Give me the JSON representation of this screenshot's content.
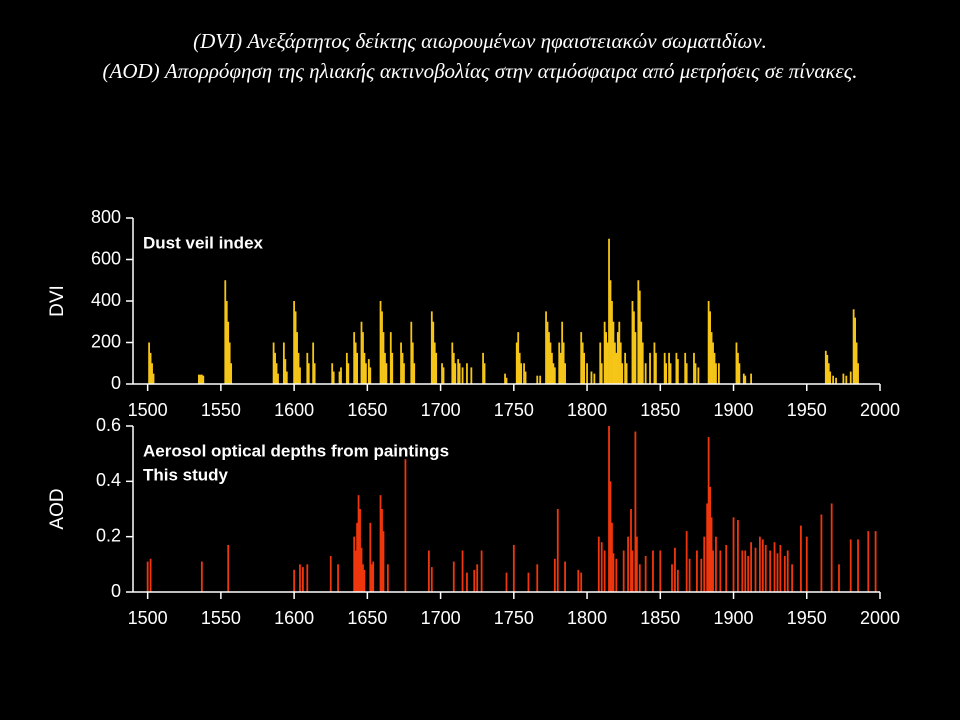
{
  "title": [
    "(DVI) Ανεξάρτητος δείκτης αιωρουμένων ηφαιστειακών σωματιδίων.",
    "(AOD) Απορρόφηση της ηλιακής ακτινοβολίας στην ατμόσφαιρα από μετρήσεις σε πίνακες."
  ],
  "chart_data": [
    {
      "type": "bar",
      "ylabel": "DVI",
      "annotations": [
        "Dust veil index"
      ],
      "color": "#f5c518",
      "xlim": [
        1490,
        2000
      ],
      "xticks": [
        1500,
        1550,
        1600,
        1650,
        1700,
        1750,
        1800,
        1850,
        1900,
        1950,
        2000
      ],
      "ylim": [
        0,
        800
      ],
      "yticks": [
        0,
        200,
        400,
        600,
        800
      ],
      "x": [
        1501,
        1502,
        1503,
        1504,
        1535,
        1536,
        1537,
        1538,
        1553,
        1554,
        1555,
        1556,
        1557,
        1586,
        1587,
        1588,
        1589,
        1593,
        1594,
        1595,
        1600,
        1601,
        1602,
        1603,
        1604,
        1609,
        1610,
        1613,
        1614,
        1626,
        1627,
        1631,
        1632,
        1636,
        1637,
        1641,
        1642,
        1643,
        1646,
        1647,
        1648,
        1649,
        1651,
        1652,
        1659,
        1660,
        1661,
        1662,
        1663,
        1666,
        1667,
        1673,
        1674,
        1675,
        1680,
        1681,
        1682,
        1694,
        1695,
        1696,
        1697,
        1701,
        1702,
        1708,
        1709,
        1710,
        1712,
        1713,
        1715,
        1718,
        1721,
        1729,
        1730,
        1744,
        1745,
        1752,
        1753,
        1754,
        1755,
        1757,
        1758,
        1766,
        1768,
        1772,
        1773,
        1774,
        1775,
        1776,
        1777,
        1778,
        1781,
        1782,
        1783,
        1784,
        1785,
        1796,
        1797,
        1798,
        1800,
        1803,
        1805,
        1809,
        1810,
        1812,
        1813,
        1814,
        1815,
        1816,
        1817,
        1818,
        1819,
        1820,
        1821,
        1822,
        1823,
        1824,
        1826,
        1827,
        1831,
        1832,
        1833,
        1835,
        1836,
        1837,
        1838,
        1840,
        1843,
        1846,
        1847,
        1853,
        1854,
        1856,
        1857,
        1861,
        1862,
        1867,
        1868,
        1873,
        1874,
        1876,
        1883,
        1884,
        1885,
        1886,
        1887,
        1888,
        1890,
        1902,
        1903,
        1904,
        1907,
        1908,
        1912,
        1963,
        1964,
        1965,
        1966,
        1968,
        1970,
        1975,
        1977,
        1980,
        1982,
        1983,
        1984,
        1985
      ],
      "values": [
        200,
        150,
        100,
        50,
        45,
        45,
        45,
        40,
        500,
        400,
        300,
        200,
        100,
        200,
        150,
        100,
        50,
        200,
        120,
        60,
        400,
        350,
        250,
        150,
        80,
        150,
        100,
        200,
        100,
        100,
        60,
        60,
        80,
        150,
        100,
        250,
        200,
        150,
        300,
        250,
        150,
        100,
        120,
        80,
        400,
        350,
        250,
        150,
        100,
        250,
        150,
        200,
        150,
        100,
        300,
        200,
        100,
        350,
        300,
        200,
        150,
        100,
        80,
        200,
        150,
        100,
        120,
        100,
        80,
        100,
        80,
        150,
        100,
        50,
        30,
        200,
        250,
        150,
        100,
        100,
        60,
        40,
        40,
        350,
        300,
        250,
        200,
        150,
        100,
        80,
        200,
        150,
        300,
        200,
        100,
        250,
        200,
        150,
        100,
        60,
        50,
        200,
        100,
        300,
        250,
        200,
        700,
        500,
        400,
        300,
        200,
        150,
        250,
        300,
        200,
        100,
        150,
        100,
        400,
        350,
        250,
        500,
        450,
        300,
        200,
        100,
        150,
        200,
        150,
        150,
        100,
        150,
        100,
        150,
        120,
        150,
        100,
        150,
        100,
        80,
        400,
        350,
        250,
        200,
        150,
        100,
        100,
        200,
        150,
        100,
        50,
        40,
        50,
        160,
        140,
        100,
        60,
        40,
        30,
        50,
        40,
        60,
        360,
        320,
        200,
        100
      ]
    },
    {
      "type": "bar",
      "ylabel": "AOD",
      "annotations": [
        "Aerosol optical depths from paintings",
        "This study"
      ],
      "color": "#f0360c",
      "xlim": [
        1490,
        2000
      ],
      "xticks": [
        1500,
        1550,
        1600,
        1650,
        1700,
        1750,
        1800,
        1850,
        1900,
        1950,
        2000
      ],
      "ylim": [
        0,
        0.6
      ],
      "yticks": [
        0,
        0.2,
        0.4,
        0.6
      ],
      "x": [
        1500,
        1502,
        1537,
        1555,
        1600,
        1604,
        1606,
        1609,
        1625,
        1630,
        1641,
        1642,
        1643,
        1644,
        1645,
        1646,
        1647,
        1648,
        1652,
        1653,
        1654,
        1659,
        1660,
        1661,
        1664,
        1676,
        1692,
        1694,
        1709,
        1715,
        1718,
        1723,
        1725,
        1728,
        1745,
        1750,
        1760,
        1766,
        1778,
        1780,
        1785,
        1794,
        1796,
        1808,
        1810,
        1812,
        1815,
        1816,
        1817,
        1818,
        1820,
        1825,
        1828,
        1830,
        1831,
        1833,
        1834,
        1836,
        1840,
        1845,
        1850,
        1858,
        1860,
        1862,
        1868,
        1870,
        1875,
        1878,
        1880,
        1882,
        1883,
        1884,
        1885,
        1886,
        1888,
        1891,
        1895,
        1900,
        1903,
        1906,
        1908,
        1910,
        1912,
        1915,
        1918,
        1920,
        1922,
        1925,
        1928,
        1930,
        1932,
        1935,
        1937,
        1940,
        1946,
        1950,
        1960,
        1967,
        1972,
        1980,
        1985,
        1992,
        1997
      ],
      "values": [
        0.11,
        0.12,
        0.11,
        0.17,
        0.08,
        0.1,
        0.09,
        0.1,
        0.13,
        0.1,
        0.2,
        0.15,
        0.25,
        0.35,
        0.3,
        0.16,
        0.1,
        0.08,
        0.25,
        0.1,
        0.11,
        0.35,
        0.3,
        0.22,
        0.1,
        0.48,
        0.15,
        0.09,
        0.11,
        0.15,
        0.07,
        0.08,
        0.1,
        0.15,
        0.07,
        0.17,
        0.07,
        0.1,
        0.12,
        0.3,
        0.11,
        0.08,
        0.07,
        0.2,
        0.18,
        0.15,
        0.6,
        0.4,
        0.25,
        0.14,
        0.12,
        0.15,
        0.2,
        0.3,
        0.15,
        0.58,
        0.2,
        0.1,
        0.13,
        0.15,
        0.15,
        0.1,
        0.16,
        0.08,
        0.22,
        0.12,
        0.15,
        0.12,
        0.2,
        0.32,
        0.56,
        0.38,
        0.27,
        0.15,
        0.2,
        0.15,
        0.17,
        0.27,
        0.26,
        0.15,
        0.15,
        0.13,
        0.18,
        0.16,
        0.2,
        0.19,
        0.17,
        0.15,
        0.18,
        0.14,
        0.17,
        0.13,
        0.15,
        0.1,
        0.24,
        0.2,
        0.28,
        0.32,
        0.1,
        0.19,
        0.19,
        0.22,
        0.22
      ]
    }
  ]
}
